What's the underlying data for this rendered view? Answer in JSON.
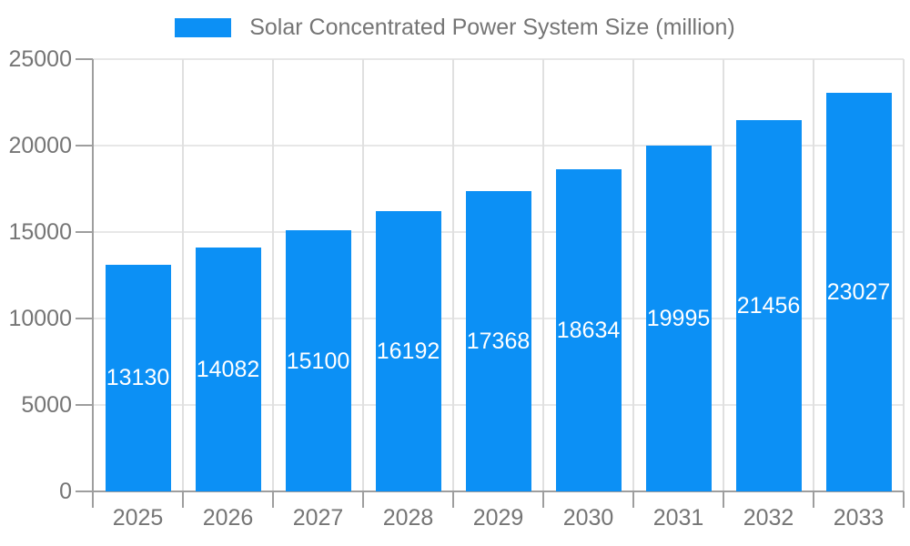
{
  "chart_data": {
    "type": "bar",
    "title": "Solar Concentrated Power System Size (million)",
    "legend": {
      "position": "top",
      "entries": [
        {
          "label": "Solar Concentrated Power System Size (million)",
          "color": "#0C90F5"
        }
      ]
    },
    "categories": [
      "2025",
      "2026",
      "2027",
      "2028",
      "2029",
      "2030",
      "2031",
      "2032",
      "2033"
    ],
    "series": [
      {
        "name": "Solar Concentrated Power System Size (million)",
        "values": [
          13130,
          14082,
          15100,
          16192,
          17368,
          18634,
          19995,
          21456,
          23027
        ]
      }
    ],
    "value_labels": [
      "13130",
      "14082",
      "15100",
      "16192",
      "17368",
      "18634",
      "19995",
      "21456",
      "23027"
    ],
    "xlabel": "",
    "ylabel": "",
    "ylim": [
      0,
      25000
    ],
    "yticks": [
      0,
      5000,
      10000,
      15000,
      20000,
      25000
    ],
    "ytick_labels": [
      "0",
      "5000",
      "10000",
      "15000",
      "20000",
      "25000"
    ],
    "grid": true,
    "colors": {
      "bar": "#0C90F5",
      "value_label_text": "#ffffff",
      "axis_label_text": "#757575",
      "legend_text": "#757575",
      "axis_line": "#9e9e9e",
      "horizontal_gridline": "#e7e7e7",
      "vertical_gridline": "#e0e0e0",
      "background": "#ffffff"
    }
  }
}
